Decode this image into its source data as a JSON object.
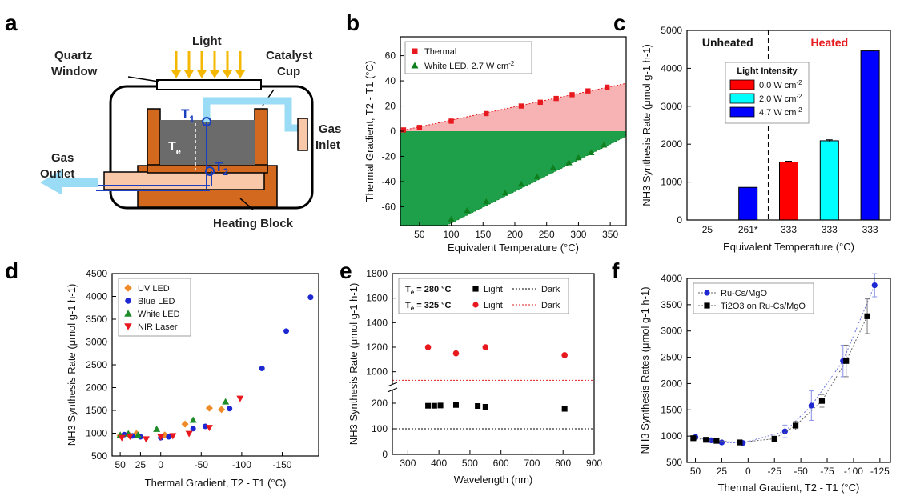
{
  "panels": {
    "a": {
      "letter": "a",
      "labels": {
        "light": "Light",
        "quartz1": "Quartz",
        "quartz2": "Window",
        "cup1": "Catalyst",
        "cup2": "Cup",
        "t1": "T",
        "t1_sub": "1",
        "t2": "T",
        "t2_sub": "2",
        "te": "T",
        "te_sub": "e",
        "gas_in1": "Gas",
        "gas_in2": "Inlet",
        "gas_out1": "Gas",
        "gas_out2": "Outlet",
        "block": "Heating Block"
      },
      "colors": {
        "arrow": "#F5B800",
        "cup": "#D2691E",
        "catalyst": "#6b6b6b",
        "gas": "#9ADCF5",
        "block_light": "#F8C8A8",
        "thermo": "#1a3fbf"
      }
    },
    "b": {
      "letter": "b"
    },
    "c": {
      "letter": "c"
    },
    "d": {
      "letter": "d"
    },
    "e": {
      "letter": "e"
    },
    "f": {
      "letter": "f"
    }
  },
  "chart_data": [
    {
      "panel": "b",
      "type": "area",
      "xlabel": "Equivalent Temperature (°C)",
      "ylabel": "Thermal Gradient, T2 - T1 (°C)",
      "xlim": [
        20,
        375
      ],
      "ylim": [
        -75,
        75
      ],
      "xticks": [
        50,
        100,
        150,
        200,
        250,
        300,
        350
      ],
      "yticks": [
        -60,
        -40,
        -20,
        0,
        20,
        40,
        60
      ],
      "series": [
        {
          "name": "Thermal",
          "color": "#E8191E",
          "fill": "#F7B3B3",
          "marker": "square",
          "x": [
            25,
            50,
            100,
            155,
            210,
            240,
            265,
            290,
            315,
            345
          ],
          "y": [
            1,
            3,
            8,
            14,
            20,
            23,
            26,
            29,
            32,
            35
          ]
        },
        {
          "name": "White LED, 2.7 W cm",
          "name_sup": "-2",
          "color": "#0E7F1E",
          "fill": "#1EA04A",
          "marker": "triangle",
          "x": [
            100,
            125,
            155,
            185,
            210,
            235,
            260,
            285,
            300,
            320,
            340
          ],
          "y": [
            -70,
            -63,
            -56,
            -49,
            -42,
            -36,
            -29,
            -25,
            -21,
            -17,
            -11
          ]
        }
      ],
      "legend": "top-left"
    },
    {
      "panel": "c",
      "type": "bar",
      "xlabel": "Equivalent Temperature (°C)",
      "ylabel": "NH3 Synthesis Rate (μmol g-1 h-1)",
      "categories": [
        "25",
        "261*",
        "333",
        "333",
        "333"
      ],
      "values": [
        0,
        860,
        1530,
        2090,
        4460
      ],
      "errors": [
        0,
        0,
        20,
        25,
        20
      ],
      "bar_colors": [
        "#0000FF",
        "#0000FF",
        "#FF0000",
        "#00FFFF",
        "#0000FF"
      ],
      "ylim": [
        0,
        5000
      ],
      "yticks": [
        0,
        1000,
        2000,
        3000,
        4000,
        5000
      ],
      "annotations": [
        {
          "text": "Unheated",
          "color": "#111111"
        },
        {
          "text": "Heated",
          "color": "#E8191E"
        }
      ],
      "legend_title": "Light Intensity",
      "legend_entries": [
        {
          "label": "0.0 W cm",
          "sup": "-2",
          "color": "#FF0000"
        },
        {
          "label": "2.0 W cm",
          "sup": "-2",
          "color": "#00FFFF"
        },
        {
          "label": "4.7 W cm",
          "sup": "-2",
          "color": "#0000FF"
        }
      ]
    },
    {
      "panel": "d",
      "type": "scatter",
      "xlabel": "Thermal Gradient, T2 - T1 (°C)",
      "ylabel": "NH3 Synthesis Rate (μmol g-1 h-1)",
      "xlim": [
        60,
        -195
      ],
      "ylim": [
        500,
        4500
      ],
      "xticks": [
        50,
        25,
        0,
        -50,
        -100,
        -150
      ],
      "xticklabels": [
        "50",
        "25",
        "0",
        "-50",
        "-100",
        "-150"
      ],
      "yticks": [
        500,
        1000,
        1500,
        2000,
        2500,
        3000,
        3500,
        4000,
        4500
      ],
      "series": [
        {
          "name": "UV LED",
          "color": "#F08C28",
          "marker": "diamond",
          "x": [
            50,
            40,
            30,
            -5,
            -30,
            -60,
            -75
          ],
          "y": [
            950,
            980,
            990,
            960,
            1200,
            1550,
            1520
          ]
        },
        {
          "name": "Blue LED",
          "color": "#1E28D2",
          "marker": "circle",
          "x": [
            45,
            35,
            25,
            0,
            -10,
            -40,
            -55,
            -85,
            -125,
            -155,
            -185
          ],
          "y": [
            970,
            940,
            920,
            900,
            920,
            1100,
            1150,
            1540,
            2420,
            3240,
            3980
          ]
        },
        {
          "name": "White LED",
          "color": "#1E8C28",
          "marker": "triangle",
          "x": [
            50,
            40,
            28,
            5,
            -40,
            -80
          ],
          "y": [
            960,
            990,
            960,
            1090,
            1290,
            1690
          ]
        },
        {
          "name": "NIR Laser",
          "color": "#E8191E",
          "marker": "triangle-down",
          "x": [
            48,
            38,
            18,
            0,
            -15,
            -35,
            -60,
            -98
          ],
          "y": [
            900,
            930,
            870,
            920,
            940,
            990,
            1120,
            1760
          ]
        }
      ],
      "legend": "top-left"
    },
    {
      "panel": "e",
      "type": "scatter",
      "xlabel": "Wavelength (nm)",
      "ylabel": "NH3 Synthesis Rate (μmol g-1 h-1)",
      "xlim": [
        250,
        900
      ],
      "xticks": [
        300,
        400,
        500,
        600,
        700,
        800,
        900
      ],
      "y_break": true,
      "yticks_lower": [
        0,
        100,
        200
      ],
      "yticks_upper": [
        1000,
        1200,
        1400,
        1600,
        1800
      ],
      "series": [
        {
          "name": "Light",
          "group": "280",
          "color": "#000000",
          "marker": "square",
          "x": [
            365,
            385,
            405,
            455,
            525,
            550,
            805
          ],
          "y": [
            190,
            190,
            191,
            193,
            189,
            186,
            178
          ]
        },
        {
          "name": "Light",
          "group": "325",
          "color": "#E8191E",
          "marker": "circle",
          "x": [
            365,
            455,
            550,
            805
          ],
          "y": [
            1200,
            1150,
            1200,
            1135
          ]
        },
        {
          "name": "Dark",
          "group": "280",
          "color": "#000000",
          "line": "dotted",
          "y": [
            100
          ]
        },
        {
          "name": "Dark",
          "group": "325",
          "color": "#E8191E",
          "line": "dotted",
          "y": [
            930
          ]
        }
      ],
      "legend_rows": [
        {
          "label_main": "T",
          "label_sub": "e",
          "label_rest": " = 280 °C",
          "light": "Light",
          "dark": "Dark",
          "color": "#000000"
        },
        {
          "label_main": "T",
          "label_sub": "e",
          "label_rest": " = 325 °C",
          "light": "Light",
          "dark": "Dark",
          "color": "#E8191E"
        }
      ]
    },
    {
      "panel": "f",
      "type": "scatter",
      "xlabel": "Thermal Gradient, T2 - T1 (°C)",
      "ylabel": "NH3 Synthesis Rates (μmol g-1 h-1)",
      "xlim": [
        58,
        -135
      ],
      "ylim": [
        500,
        4000
      ],
      "xticks": [
        50,
        25,
        0,
        -25,
        -50,
        -75,
        -100,
        -125
      ],
      "yticks": [
        500,
        1000,
        1500,
        2000,
        2500,
        3000,
        3500,
        4000
      ],
      "series": [
        {
          "name": "Ru-Cs/MgO",
          "color": "#1E28D2",
          "marker": "circle",
          "x": [
            50,
            35,
            25,
            5,
            -35,
            -60,
            -90,
            -120
          ],
          "y": [
            980,
            920,
            880,
            870,
            1090,
            1580,
            2430,
            3870
          ],
          "err": [
            40,
            30,
            30,
            30,
            120,
            280,
            300,
            220
          ]
        },
        {
          "name": "Ti2O3 on Ru-Cs/MgO",
          "color": "#000000",
          "marker": "square",
          "x": [
            52,
            40,
            30,
            8,
            -25,
            -45,
            -70,
            -93,
            -113
          ],
          "y": [
            960,
            930,
            910,
            880,
            950,
            1200,
            1670,
            2430,
            3280
          ],
          "err": [
            40,
            30,
            30,
            30,
            40,
            80,
            120,
            300,
            330
          ]
        }
      ],
      "legend": "top-left"
    }
  ]
}
